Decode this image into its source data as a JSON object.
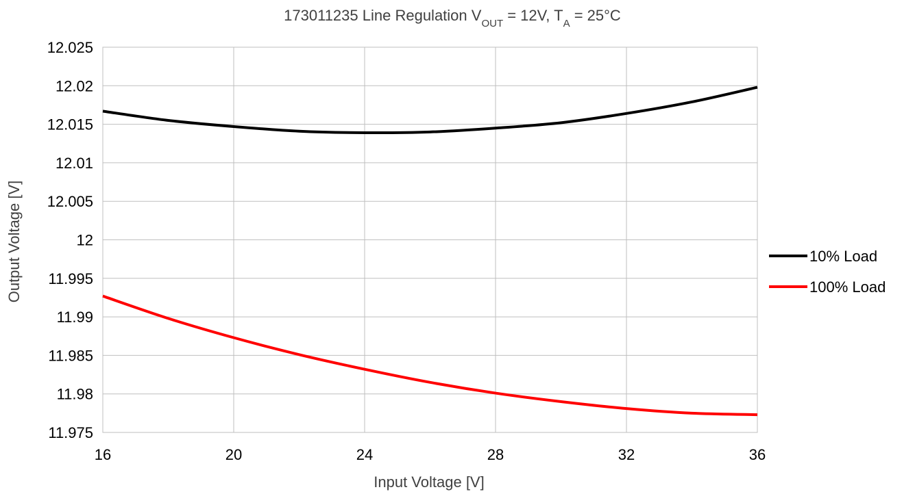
{
  "chart_data": {
    "type": "line",
    "title": {
      "prefix": "173011235  Line Regulation  V",
      "sub1": "OUT",
      "mid": " = 12V, T",
      "sub2": "A",
      "suffix": " = 25°C"
    },
    "xlabel": "Input Voltage [V]",
    "ylabel": "Output Voltage [V]",
    "xlim": [
      16,
      36
    ],
    "ylim": [
      11.975,
      12.025
    ],
    "x_ticks": [
      16,
      20,
      24,
      28,
      32,
      36
    ],
    "y_ticks": [
      11.975,
      11.98,
      11.985,
      11.99,
      11.995,
      12,
      12.005,
      12.01,
      12.015,
      12.02,
      12.025
    ],
    "x_tick_labels": [
      "16",
      "20",
      "24",
      "28",
      "32",
      "36"
    ],
    "y_tick_labels": [
      "11.975",
      "11.98",
      "11.985",
      "11.99",
      "11.995",
      "12",
      "12.005",
      "12.01",
      "12.015",
      "12.02",
      "12.025"
    ],
    "grid": true,
    "legend_position": "right",
    "series": [
      {
        "name": "10% Load",
        "color": "#000000",
        "x": [
          16,
          18,
          20,
          22,
          24,
          26,
          28,
          30,
          32,
          34,
          36
        ],
        "y": [
          12.0167,
          12.0155,
          12.0147,
          12.0141,
          12.0139,
          12.014,
          12.0145,
          12.0152,
          12.0164,
          12.0179,
          12.0198
        ]
      },
      {
        "name": "100% Load",
        "color": "#ff0000",
        "x": [
          16,
          18,
          20,
          22,
          24,
          26,
          28,
          30,
          32,
          34,
          36
        ],
        "y": [
          11.9927,
          11.9898,
          11.9873,
          11.9851,
          11.9832,
          11.9815,
          11.9801,
          11.979,
          11.9781,
          11.9775,
          11.9773
        ]
      }
    ]
  }
}
